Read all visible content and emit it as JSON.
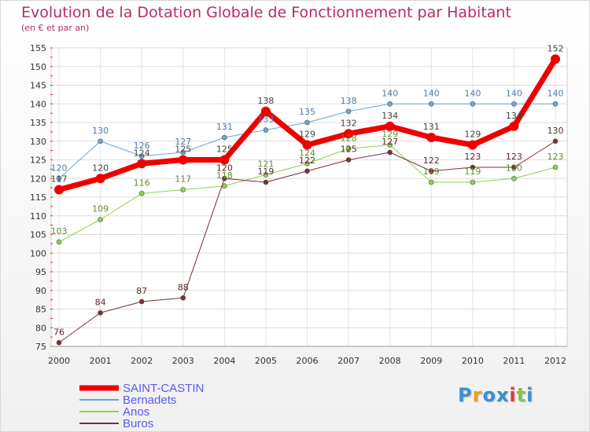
{
  "chart_data": {
    "type": "line",
    "title": "Evolution de la Dotation Globale de Fonctionnement par Habitant",
    "subtitle": "(en € et par an)",
    "categories": [
      "2000",
      "2001",
      "2002",
      "2003",
      "2004",
      "2005",
      "2006",
      "2007",
      "2008",
      "2009",
      "2010",
      "2011",
      "2012"
    ],
    "ylim": [
      75,
      155
    ],
    "yticks": [
      75,
      80,
      85,
      90,
      95,
      100,
      105,
      110,
      115,
      120,
      125,
      130,
      135,
      140,
      145,
      150,
      155
    ],
    "grid": true,
    "legend_position": "bottom-left",
    "series": [
      {
        "name": "SAINT-CASTIN",
        "color": "#ee0000",
        "width": 7,
        "values": [
          117,
          120,
          124,
          125,
          125,
          138,
          129,
          132,
          134,
          131,
          129,
          134,
          152
        ]
      },
      {
        "name": "Bernadets",
        "color": "#6aa6d9",
        "width": 1,
        "values": [
          120,
          130,
          126,
          127,
          131,
          133,
          135,
          138,
          140,
          140,
          140,
          140,
          140
        ]
      },
      {
        "name": "Anos",
        "color": "#8fd14f",
        "width": 1,
        "values": [
          103,
          109,
          116,
          117,
          118,
          121,
          124,
          128,
          129,
          119,
          119,
          120,
          123
        ]
      },
      {
        "name": "Buros",
        "color": "#7a2f2f",
        "width": 1,
        "values": [
          76,
          84,
          87,
          88,
          120,
          119,
          122,
          125,
          127,
          122,
          123,
          123,
          130
        ]
      }
    ]
  },
  "logo": {
    "letters": [
      "P",
      "r",
      "o",
      "x",
      "i",
      "t",
      "i"
    ],
    "colors": [
      "#3a8fd6",
      "#f59a1c",
      "#3a8fd6",
      "#3a8fd6",
      "#e23b3b",
      "#8bc34a",
      "#3a8fd6"
    ]
  }
}
